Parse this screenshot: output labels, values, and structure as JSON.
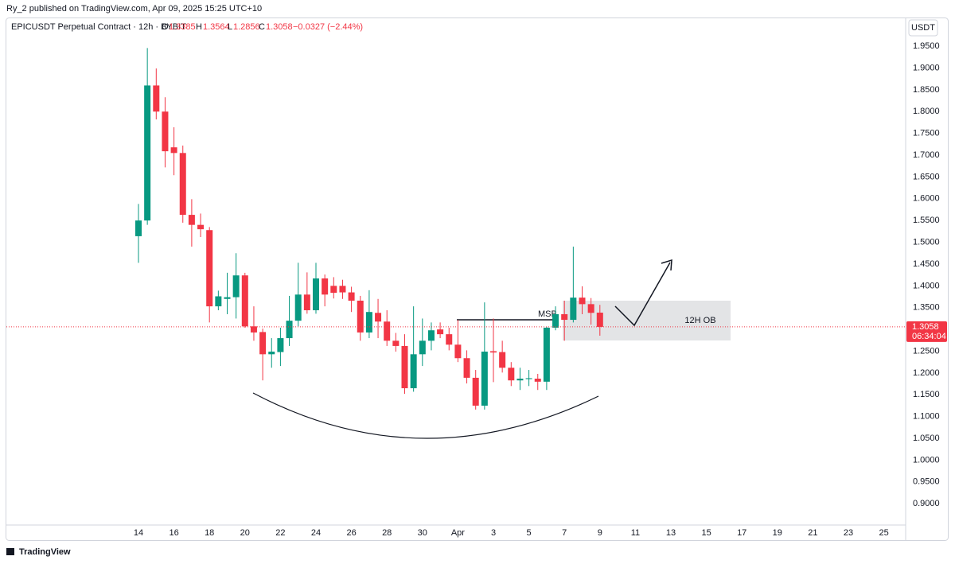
{
  "attribution": "Ry_2 published on TradingView.com, Apr 09, 2025 15:25 UTC+10",
  "footer": "TradingView",
  "chart_data": {
    "type": "candlestick",
    "title": "EPICUSDT Perpetual Contract · 12h · BYBIT",
    "ohlc_labels": [
      "O",
      "H",
      "L",
      "C"
    ],
    "change": "−0.0327 (−2.44%)",
    "currency": "USDT",
    "countdown": "06:34:04",
    "annotations": [
      "MSB",
      "12H OB"
    ],
    "up_color": "#089981",
    "down_color": "#f23645",
    "grid": false,
    "categories": [
      "14",
      null,
      null,
      null,
      "16",
      null,
      null,
      null,
      "18",
      null,
      null,
      null,
      "20",
      null,
      null,
      null,
      "22",
      null,
      null,
      null,
      "24",
      null,
      null,
      null,
      "26",
      null,
      null,
      null,
      "28",
      null,
      null,
      null,
      "30",
      null,
      null,
      null,
      "Apr",
      null,
      null,
      null,
      "3",
      null,
      null,
      null,
      "5",
      null,
      null,
      null,
      "7",
      null,
      null,
      null,
      "9",
      null,
      null,
      null,
      "11",
      null,
      null,
      null,
      "13",
      null,
      null,
      null,
      "15",
      null,
      null,
      null,
      "17",
      null,
      null,
      null,
      "19",
      null,
      null,
      null,
      "21",
      null,
      null,
      null,
      "23",
      null,
      null,
      null,
      "25",
      null,
      null
    ],
    "open": [
      1.514,
      1.55,
      1.86,
      1.8,
      1.718,
      1.705,
      1.563,
      1.54,
      1.528,
      1.353,
      1.37,
      1.374,
      1.424,
      1.307,
      1.294,
      1.243,
      1.248,
      1.28,
      1.32,
      1.38,
      1.344,
      1.417,
      1.4,
      1.4,
      1.385,
      1.366,
      1.293,
      1.338,
      1.318,
      1.274,
      1.262,
      1.165,
      1.243,
      1.274,
      1.3,
      1.289,
      1.265,
      1.234,
      1.189,
      1.125,
      1.25,
      1.248,
      1.212,
      1.183,
      1.186,
      1.187,
      1.18,
      1.304,
      1.335,
      1.322,
      1.373,
      1.358,
      1.3385,
      null,
      null,
      null,
      null,
      null,
      null,
      null,
      null,
      null,
      null,
      null,
      null,
      null,
      null,
      null,
      null,
      null,
      null,
      null,
      null,
      null,
      null,
      null,
      null,
      null,
      null,
      null,
      null,
      null,
      null,
      null,
      null,
      null,
      null
    ],
    "high": [
      1.588,
      1.946,
      1.899,
      1.833,
      1.764,
      1.722,
      1.599,
      1.566,
      1.535,
      1.389,
      1.43,
      1.475,
      1.43,
      1.353,
      1.302,
      1.28,
      1.304,
      1.377,
      1.453,
      1.431,
      1.453,
      1.426,
      1.42,
      1.414,
      1.398,
      1.377,
      1.39,
      1.37,
      1.344,
      1.292,
      1.289,
      1.353,
      1.325,
      1.316,
      1.316,
      1.304,
      1.322,
      1.252,
      1.207,
      1.362,
      1.325,
      1.274,
      1.225,
      1.212,
      1.207,
      1.198,
      1.306,
      1.353,
      1.366,
      1.49,
      1.399,
      1.372,
      1.3564,
      null,
      null,
      null,
      null,
      null,
      null,
      null,
      null,
      null,
      null,
      null,
      null,
      null,
      null,
      null,
      null,
      null,
      null,
      null,
      null,
      null,
      null,
      null,
      null,
      null,
      null,
      null,
      null,
      null,
      null,
      null,
      null,
      null,
      null
    ],
    "low": [
      1.453,
      1.54,
      1.782,
      1.672,
      1.654,
      1.545,
      1.49,
      1.512,
      1.316,
      1.344,
      1.335,
      1.325,
      1.304,
      1.274,
      1.183,
      1.212,
      1.216,
      1.262,
      1.307,
      1.336,
      1.336,
      1.353,
      1.371,
      1.37,
      1.34,
      1.274,
      1.28,
      1.28,
      1.262,
      1.249,
      1.152,
      1.157,
      1.216,
      1.252,
      1.28,
      1.252,
      1.225,
      1.176,
      1.116,
      1.116,
      1.179,
      1.201,
      1.17,
      1.161,
      1.17,
      1.161,
      1.161,
      1.298,
      1.274,
      1.316,
      1.335,
      1.311,
      1.2856,
      null,
      null,
      null,
      null,
      null,
      null,
      null,
      null,
      null,
      null,
      null,
      null,
      null,
      null,
      null,
      null,
      null,
      null,
      null,
      null,
      null,
      null,
      null,
      null,
      null,
      null,
      null,
      null,
      null,
      null,
      null,
      null,
      null,
      null
    ],
    "close": [
      1.55,
      1.86,
      1.8,
      1.709,
      1.705,
      1.563,
      1.54,
      1.53,
      1.353,
      1.376,
      1.374,
      1.424,
      1.307,
      1.293,
      1.243,
      1.249,
      1.28,
      1.32,
      1.38,
      1.344,
      1.417,
      1.38,
      1.384,
      1.385,
      1.366,
      1.293,
      1.34,
      1.318,
      1.274,
      1.262,
      1.165,
      1.243,
      1.274,
      1.298,
      1.289,
      1.265,
      1.234,
      1.189,
      1.125,
      1.249,
      1.247,
      1.212,
      1.183,
      1.187,
      1.188,
      1.18,
      1.304,
      1.335,
      1.322,
      1.373,
      1.358,
      1.338,
      1.3058,
      null,
      null,
      null,
      null,
      null,
      null,
      null,
      null,
      null,
      null,
      null,
      null,
      null,
      null,
      null,
      null,
      null,
      null,
      null,
      null,
      null,
      null,
      null,
      null,
      null,
      null,
      null,
      null,
      null,
      null,
      null,
      null,
      null,
      null
    ],
    "ylim": [
      0.851,
      2.016
    ],
    "yticks": [
      {
        "value": 0.9,
        "label": "0.9000"
      },
      {
        "value": 0.95,
        "label": "0.9500"
      },
      {
        "value": 1.0,
        "label": "1.0000"
      },
      {
        "value": 1.05,
        "label": "1.0500"
      },
      {
        "value": 1.1,
        "label": "1.1000"
      },
      {
        "value": 1.15,
        "label": "1.1500"
      },
      {
        "value": 1.2,
        "label": "1.2000"
      },
      {
        "value": 1.25,
        "label": "1.2500"
      },
      {
        "value": 1.3,
        "label": "1.3000"
      },
      {
        "value": 1.35,
        "label": "1.3500"
      },
      {
        "value": 1.4,
        "label": "1.4000"
      },
      {
        "value": 1.45,
        "label": "1.4500"
      },
      {
        "value": 1.5,
        "label": "1.5000"
      },
      {
        "value": 1.55,
        "label": "1.5500"
      },
      {
        "value": 1.6,
        "label": "1.6000"
      },
      {
        "value": 1.65,
        "label": "1.6500"
      },
      {
        "value": 1.7,
        "label": "1.7000"
      },
      {
        "value": 1.75,
        "label": "1.7500"
      },
      {
        "value": 1.8,
        "label": "1.8000"
      },
      {
        "value": 1.85,
        "label": "1.8500"
      },
      {
        "value": 1.9,
        "label": "1.9000"
      },
      {
        "value": 1.95,
        "label": "1.9500"
      }
    ]
  }
}
